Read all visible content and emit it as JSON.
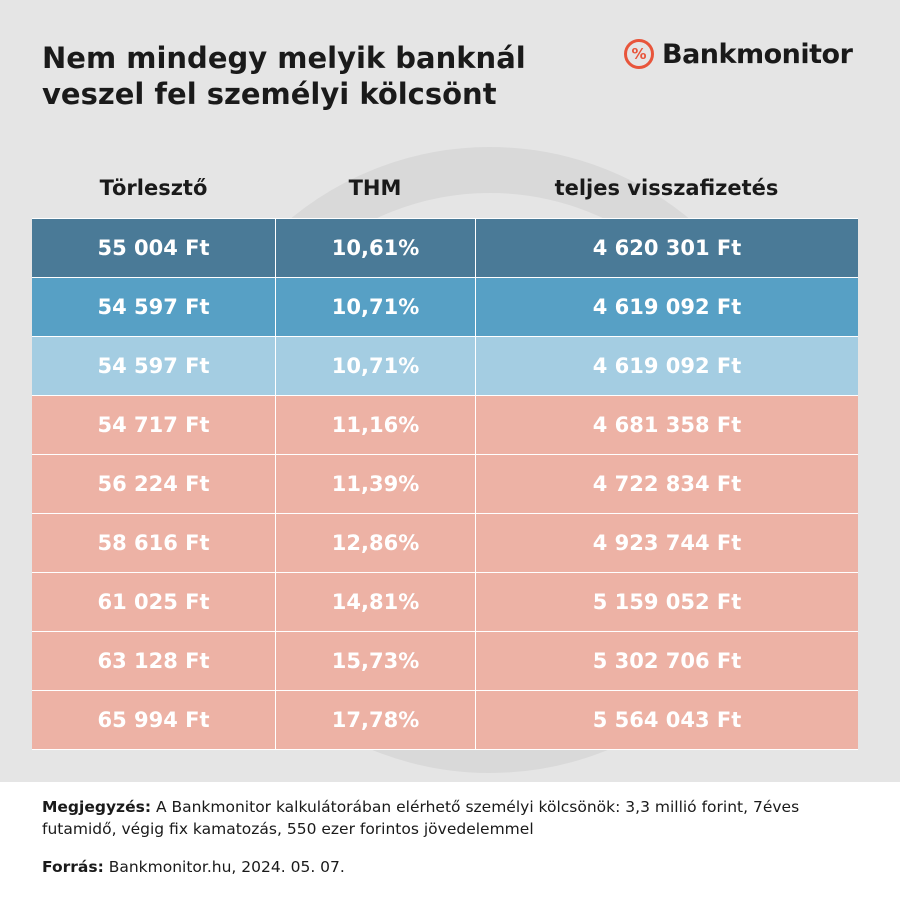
{
  "title_line1": "Nem mindegy melyik banknál",
  "title_line2": "veszel fel személyi kölcsönt",
  "brand": {
    "icon_symbol": "%",
    "name": "Bankmonitor",
    "icon": "percent-circle-icon",
    "color": "#e8553b"
  },
  "chart_data": {
    "type": "table",
    "columns": [
      "Törlesztő",
      "THM",
      "teljes visszafizetés"
    ],
    "rows": [
      {
        "torleszto": "55 004 Ft",
        "thm": "10,61%",
        "teljes": "4 620 301 Ft",
        "color": "#4a7a97"
      },
      {
        "torleszto": "54 597 Ft",
        "thm": "10,71%",
        "teljes": "4 619 092 Ft",
        "color": "#57a0c5"
      },
      {
        "torleszto": "54 597 Ft",
        "thm": "10,71%",
        "teljes": "4 619 092 Ft",
        "color": "#a4cde2"
      },
      {
        "torleszto": "54 717 Ft",
        "thm": "11,16%",
        "teljes": "4 681 358 Ft",
        "color": "#edb2a5"
      },
      {
        "torleszto": "56 224 Ft",
        "thm": "11,39%",
        "teljes": "4 722 834 Ft",
        "color": "#edb2a5"
      },
      {
        "torleszto": "58 616 Ft",
        "thm": "12,86%",
        "teljes": "4 923 744 Ft",
        "color": "#edb2a5"
      },
      {
        "torleszto": "61 025 Ft",
        "thm": "14,81%",
        "teljes": "5 159 052 Ft",
        "color": "#edb2a5"
      },
      {
        "torleszto": "63 128 Ft",
        "thm": "15,73%",
        "teljes": "5 302 706 Ft",
        "color": "#edb2a5"
      },
      {
        "torleszto": "65 994 Ft",
        "thm": "17,78%",
        "teljes": "5 564 043 Ft",
        "color": "#edb2a5"
      }
    ]
  },
  "footer": {
    "note_label": "Megjegyzés:",
    "note_text": " A Bankmonitor kalkulátorában elérhető személyi kölcsönök: 3,3 millió forint, 7éves futamidő, végig fix kamatozás, 550 ezer forintos jövedelemmel",
    "source_label": "Forrás:",
    "source_text": " Bankmonitor.hu, 2024. 05. 07."
  },
  "colors": {
    "panel_bg": "#e5e5e5",
    "title": "#1a1a1a"
  }
}
